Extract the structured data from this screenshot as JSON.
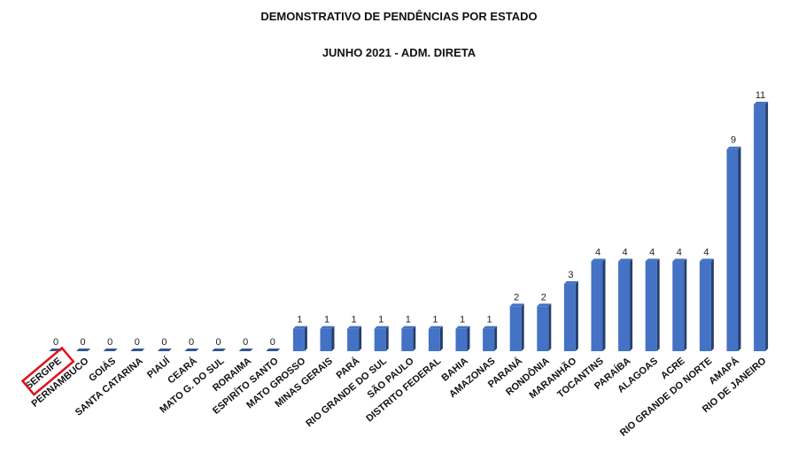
{
  "chart_data": {
    "type": "bar",
    "title": "DEMONSTRATIVO DE PENDÊNCIAS POR ESTADO",
    "subtitle": "JUNHO 2021 - ADM. DIRETA",
    "xlabel": "",
    "ylabel": "",
    "ylim": [
      0,
      11
    ],
    "grid": false,
    "legend": "none",
    "bar_color": "#4472C4",
    "highlight_color": "#e0101a",
    "highlighted_category": "SERGIPE",
    "categories": [
      "SERGIPE",
      "PERNAMBUCO",
      "GOIÁS",
      "SANTA CATARINA",
      "PIAUÍ",
      "CEARÁ",
      "MATO G. DO SUL",
      "RORAIMA",
      "ESPIRÍTO  SANTO",
      "MATO GROSSO",
      "MINAS GERAIS",
      "PARÁ",
      "RIO GRANDE  DO SUL",
      "SÃO PAULO",
      "DISTRITO  FEDERAL",
      "BAHIA",
      "AMAZONAS",
      "PARANÁ",
      "RONDÔNIA",
      "MARANHÃO",
      "TOCANTINS",
      "PARAÍBA",
      "ALAGOAS",
      "ACRE",
      "RIO GRANDE DO NORTE",
      "AMAPÁ",
      "RIO DE JANEIRO"
    ],
    "values": [
      0,
      0,
      0,
      0,
      0,
      0,
      0,
      0,
      0,
      1,
      1,
      1,
      1,
      1,
      1,
      1,
      1,
      2,
      2,
      3,
      4,
      4,
      4,
      4,
      4,
      9,
      11
    ]
  }
}
